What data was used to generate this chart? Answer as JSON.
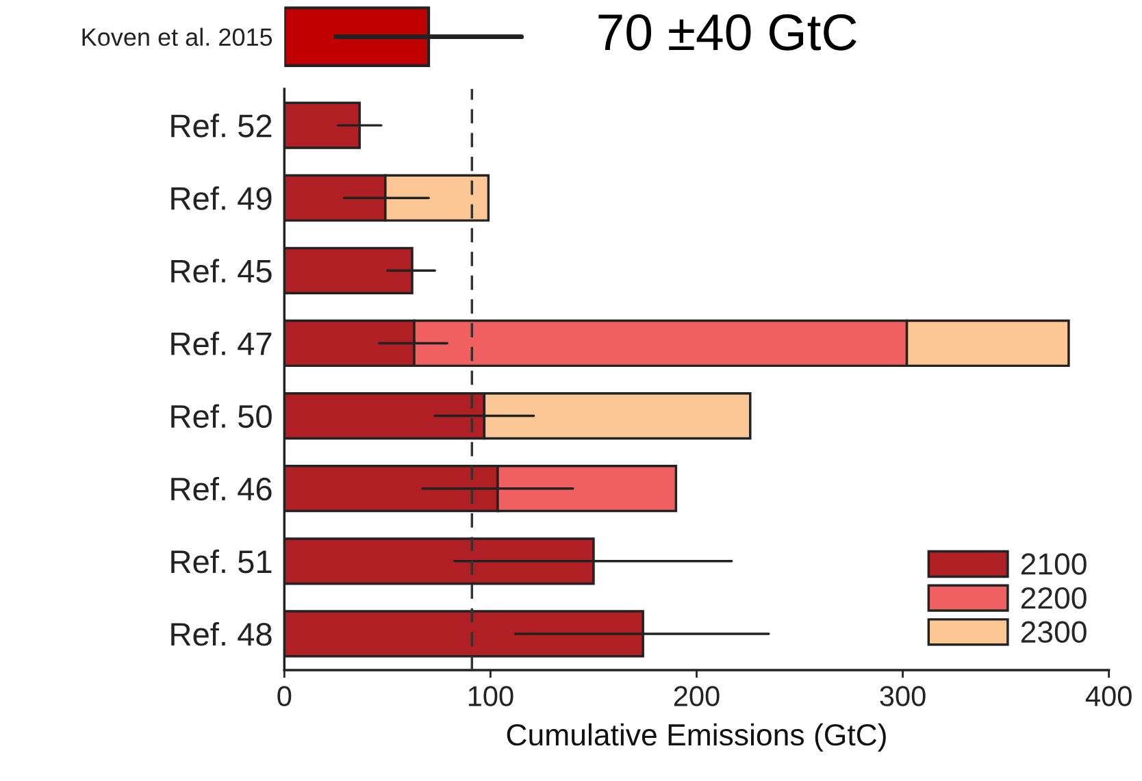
{
  "chart_data": [
    {
      "type": "bar",
      "orientation": "horizontal",
      "categories": [
        "Koven et al. 2015"
      ],
      "color": "#c00000",
      "values": [
        70
      ],
      "errors": [
        [
          25,
          115
        ]
      ],
      "xlim": [
        0,
        400
      ],
      "tick_labels": "y",
      "annotations": [
        "70 ±40 GtC"
      ]
    },
    {
      "type": "bar",
      "orientation": "horizontal",
      "stacked": true,
      "categories": [
        "Ref. 52",
        "Ref. 49",
        "Ref. 45",
        "Ref. 47",
        "Ref. 50",
        "Ref. 46",
        "Ref. 51",
        "Ref. 48"
      ],
      "series": [
        {
          "name": "2100",
          "color": "#b01f24",
          "values": [
            36.5,
            49,
            62,
            63,
            97,
            103.5,
            150,
            174
          ],
          "errors": [
            [
              26,
              47
            ],
            [
              29,
              70
            ],
            [
              50,
              73
            ],
            [
              46,
              79
            ],
            [
              73,
              121
            ],
            [
              67,
              140
            ],
            [
              82.5,
              217
            ],
            [
              112,
              235
            ]
          ]
        },
        {
          "name": "2200",
          "color": "#f06060",
          "values": [
            null,
            null,
            null,
            239,
            null,
            86.5,
            null,
            null
          ]
        },
        {
          "name": "2300",
          "color": "#fcc794",
          "values": [
            null,
            50,
            null,
            78.5,
            129,
            null,
            null,
            null
          ]
        }
      ],
      "xlim": [
        0,
        400
      ],
      "xticks": [
        0,
        100,
        200,
        300,
        400
      ],
      "xlabel": "Cumulative Emissions (GtC)",
      "ref_lines": [
        {
          "axis": "x",
          "value": 91,
          "line_style": "dashed",
          "color": "#333333"
        }
      ],
      "legend": "bottom right",
      "grid": false
    }
  ]
}
